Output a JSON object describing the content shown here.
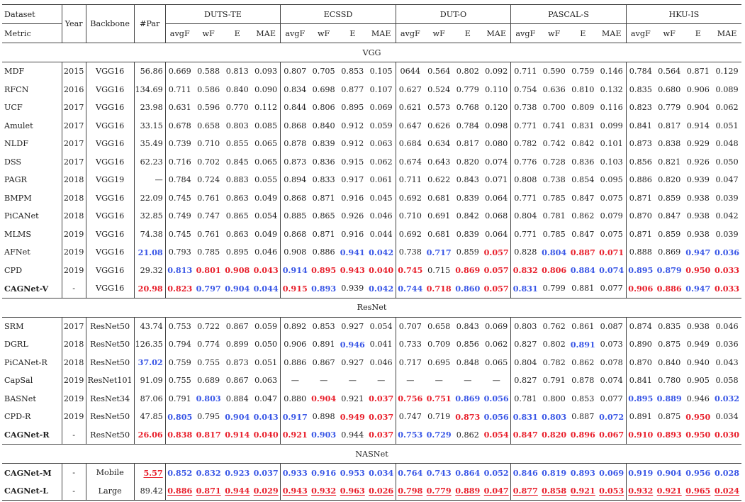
{
  "header": {
    "dataset_label": "Dataset",
    "metric_label": "Metric",
    "year_label": "Year",
    "backbone_label": "Backbone",
    "par_label": "#Par",
    "datasets": [
      "DUTS-TE",
      "ECSSD",
      "DUT-O",
      "PASCAL-S",
      "HKU-IS"
    ],
    "metrics": [
      "avgF",
      "wF",
      "E",
      "MAE"
    ]
  },
  "sections": [
    {
      "title": "VGG",
      "rows": [
        {
          "method": "MDF",
          "year": "2015",
          "backbone": "VGG16",
          "par": "56.86",
          "vals": [
            "0.669",
            "0.588",
            "0.813",
            "0.093",
            "0.807",
            "0.705",
            "0.853",
            "0.105",
            "0644",
            "0.564",
            "0.802",
            "0.092",
            "0.711",
            "0.590",
            "0.759",
            "0.146",
            "0.784",
            "0.564",
            "0.871",
            "0.129"
          ]
        },
        {
          "method": "RFCN",
          "year": "2016",
          "backbone": "VGG16",
          "par": "134.69",
          "vals": [
            "0.711",
            "0.586",
            "0.840",
            "0.090",
            "0.834",
            "0.698",
            "0.877",
            "0.107",
            "0.627",
            "0.524",
            "0.779",
            "0.110",
            "0.754",
            "0.636",
            "0.810",
            "0.132",
            "0.835",
            "0.680",
            "0.906",
            "0.089"
          ]
        },
        {
          "method": "UCF",
          "year": "2017",
          "backbone": "VGG16",
          "par": "23.98",
          "vals": [
            "0.631",
            "0.596",
            "0.770",
            "0.112",
            "0.844",
            "0.806",
            "0.895",
            "0.069",
            "0.621",
            "0.573",
            "0.768",
            "0.120",
            "0.738",
            "0.700",
            "0.809",
            "0.116",
            "0.823",
            "0.779",
            "0.904",
            "0.062"
          ]
        },
        {
          "method": "Amulet",
          "year": "2017",
          "backbone": "VGG16",
          "par": "33.15",
          "vals": [
            "0.678",
            "0.658",
            "0.803",
            "0.085",
            "0.868",
            "0.840",
            "0.912",
            "0.059",
            "0.647",
            "0.626",
            "0.784",
            "0.098",
            "0.771",
            "0.741",
            "0.831",
            "0.099",
            "0.841",
            "0.817",
            "0.914",
            "0.051"
          ]
        },
        {
          "method": "NLDF",
          "year": "2017",
          "backbone": "VGG16",
          "par": "35.49",
          "vals": [
            "0.739",
            "0.710",
            "0.855",
            "0.065",
            "0.878",
            "0.839",
            "0.912",
            "0.063",
            "0.684",
            "0.634",
            "0.817",
            "0.080",
            "0.782",
            "0.742",
            "0.842",
            "0.101",
            "0.873",
            "0.838",
            "0.929",
            "0.048"
          ]
        },
        {
          "method": "DSS",
          "year": "2017",
          "backbone": "VGG16",
          "par": "62.23",
          "vals": [
            "0.716",
            "0.702",
            "0.845",
            "0.065",
            "0.873",
            "0.836",
            "0.915",
            "0.062",
            "0.674",
            "0.643",
            "0.820",
            "0.074",
            "0.776",
            "0.728",
            "0.836",
            "0.103",
            "0.856",
            "0.821",
            "0.926",
            "0.050"
          ]
        },
        {
          "method": "PAGR",
          "year": "2018",
          "backbone": "VGG19",
          "par": "—",
          "vals": [
            "0.784",
            "0.724",
            "0.883",
            "0.055",
            "0.894",
            "0.833",
            "0.917",
            "0.061",
            "0.711",
            "0.622",
            "0.843",
            "0.071",
            "0.808",
            "0.738",
            "0.854",
            "0.095",
            "0.886",
            "0.820",
            "0.939",
            "0.047"
          ]
        },
        {
          "method": "BMPM",
          "year": "2018",
          "backbone": "VGG16",
          "par": "22.09",
          "vals": [
            "0.745",
            "0.761",
            "0.863",
            "0.049",
            "0.868",
            "0.871",
            "0.916",
            "0.045",
            "0.692",
            "0.681",
            "0.839",
            "0.064",
            "0.771",
            "0.785",
            "0.847",
            "0.075",
            "0.871",
            "0.859",
            "0.938",
            "0.039"
          ]
        },
        {
          "method": "PiCANet",
          "year": "2018",
          "backbone": "VGG16",
          "par": "32.85",
          "vals": [
            "0.749",
            "0.747",
            "0.865",
            "0.054",
            "0.885",
            "0.865",
            "0.926",
            "0.046",
            "0.710",
            "0.691",
            "0.842",
            "0.068",
            "0.804",
            "0.781",
            "0.862",
            "0.079",
            "0.870",
            "0.847",
            "0.938",
            "0.042"
          ]
        },
        {
          "method": "MLMS",
          "year": "2019",
          "backbone": "VGG16",
          "par": "74.38",
          "vals": [
            "0.745",
            "0.761",
            "0.863",
            "0.049",
            "0.868",
            "0.871",
            "0.916",
            "0.044",
            "0.692",
            "0.681",
            "0.839",
            "0.064",
            "0.771",
            "0.785",
            "0.847",
            "0.075",
            "0.871",
            "0.859",
            "0.938",
            "0.039"
          ]
        },
        {
          "method": "AFNet",
          "year": "2019",
          "backbone": "VGG16",
          "par": "21.08",
          "par_style": "blueb",
          "vals": [
            "0.793",
            "0.785",
            "0.895",
            "0.046",
            "0.908",
            "0.886",
            "0.941",
            "0.042",
            "0.738",
            "0.717",
            "0.859",
            "0.057",
            "0.828",
            "0.804",
            "0.887",
            "0.071",
            "0.888",
            "0.869",
            "0.947",
            "0.036"
          ],
          "styles": {
            "6": "blueb",
            "7": "blueb",
            "9": "blueb",
            "11": "red",
            "13": "blueb",
            "14": "red",
            "15": "red",
            "18": "blueb",
            "19": "blueb"
          }
        },
        {
          "method": "CPD",
          "year": "2019",
          "backbone": "VGG16",
          "par": "29.32",
          "vals": [
            "0.813",
            "0.801",
            "0.908",
            "0.043",
            "0.914",
            "0.895",
            "0.943",
            "0.040",
            "0.745",
            "0.715",
            "0.869",
            "0.057",
            "0.832",
            "0.806",
            "0.884",
            "0.074",
            "0.895",
            "0.879",
            "0.950",
            "0.033"
          ],
          "styles": {
            "0": "blueb",
            "1": "red",
            "2": "red",
            "3": "red",
            "4": "blueb",
            "5": "red",
            "6": "red",
            "7": "red",
            "8": "red",
            "10": "red",
            "11": "red",
            "12": "red",
            "13": "red",
            "14": "blueb",
            "15": "blueb",
            "16": "blueb",
            "17": "blueb",
            "18": "red",
            "19": "red"
          }
        },
        {
          "method": "CAGNet-V",
          "method_bold": true,
          "year": "-",
          "backbone": "VGG16",
          "par": "20.98",
          "par_style": "red",
          "vals": [
            "0.823",
            "0.797",
            "0.904",
            "0.044",
            "0.915",
            "0.893",
            "0.939",
            "0.042",
            "0.744",
            "0.718",
            "0.860",
            "0.057",
            "0.831",
            "0.799",
            "0.881",
            "0.077",
            "0.906",
            "0.886",
            "0.947",
            "0.033"
          ],
          "styles": {
            "0": "red",
            "1": "blueb",
            "2": "blueb",
            "3": "blueb",
            "4": "red",
            "5": "blueb",
            "7": "blueb",
            "8": "blueb",
            "9": "red",
            "10": "blueb",
            "11": "red",
            "12": "blueb",
            "16": "red",
            "17": "red",
            "18": "blueb",
            "19": "red"
          }
        }
      ]
    },
    {
      "title": "ResNet",
      "rows": [
        {
          "method": "SRM",
          "year": "2017",
          "backbone": "ResNet50",
          "par": "43.74",
          "vals": [
            "0.753",
            "0.722",
            "0.867",
            "0.059",
            "0.892",
            "0.853",
            "0.927",
            "0.054",
            "0.707",
            "0.658",
            "0.843",
            "0.069",
            "0.803",
            "0.762",
            "0.861",
            "0.087",
            "0.874",
            "0.835",
            "0.938",
            "0.046"
          ]
        },
        {
          "method": "DGRL",
          "year": "2018",
          "backbone": "ResNet50",
          "par": "126.35",
          "vals": [
            "0.794",
            "0.774",
            "0.899",
            "0.050",
            "0.906",
            "0.891",
            "0.946",
            "0.041",
            "0.733",
            "0.709",
            "0.856",
            "0.062",
            "0.827",
            "0.802",
            "0.891",
            "0.073",
            "0.890",
            "0.875",
            "0.949",
            "0.036"
          ],
          "styles": {
            "6": "blueb",
            "14": "blueb"
          }
        },
        {
          "method": "PiCANet-R",
          "year": "2018",
          "backbone": "ResNet50",
          "par": "37.02",
          "par_style": "blueb",
          "vals": [
            "0.759",
            "0.755",
            "0.873",
            "0.051",
            "0.886",
            "0.867",
            "0.927",
            "0.046",
            "0.717",
            "0.695",
            "0.848",
            "0.065",
            "0.804",
            "0.782",
            "0.862",
            "0.078",
            "0.870",
            "0.840",
            "0.940",
            "0.043"
          ]
        },
        {
          "method": "CapSal",
          "year": "2019",
          "backbone": "ResNet101",
          "par": "91.09",
          "vals": [
            "0.755",
            "0.689",
            "0.867",
            "0.063",
            "—",
            "—",
            "—",
            "—",
            "—",
            "—",
            "—",
            "—",
            "0.827",
            "0.791",
            "0.878",
            "0.074",
            "0.841",
            "0.780",
            "0.905",
            "0.058"
          ]
        },
        {
          "method": "BASNet",
          "year": "2019",
          "backbone": "ResNet34",
          "par": "87.06",
          "vals": [
            "0.791",
            "0.803",
            "0.884",
            "0.047",
            "0.880",
            "0.904",
            "0.921",
            "0.037",
            "0.756",
            "0.751",
            "0.869",
            "0.056",
            "0.781",
            "0.800",
            "0.853",
            "0.077",
            "0.895",
            "0.889",
            "0.946",
            "0.032"
          ],
          "styles": {
            "1": "blueb",
            "5": "red",
            "7": "red",
            "8": "red",
            "9": "red",
            "10": "blueb",
            "11": "blueb",
            "16": "blueb",
            "17": "blueb",
            "19": "blueb"
          }
        },
        {
          "method": "CPD-R",
          "year": "2019",
          "backbone": "ResNet50",
          "par": "47.85",
          "vals": [
            "0.805",
            "0.795",
            "0.904",
            "0.043",
            "0.917",
            "0.898",
            "0.949",
            "0.037",
            "0.747",
            "0.719",
            "0.873",
            "0.056",
            "0.831",
            "0.803",
            "0.887",
            "0.072",
            "0.891",
            "0.875",
            "0.950",
            "0.034"
          ],
          "styles": {
            "0": "blueb",
            "2": "blueb",
            "3": "blueb",
            "4": "blueb",
            "6": "red",
            "7": "red",
            "10": "red",
            "11": "blueb",
            "12": "blueb",
            "13": "blueb",
            "15": "blueb",
            "18": "red"
          }
        },
        {
          "method": "CAGNet-R",
          "method_bold": true,
          "year": "-",
          "backbone": "ResNet50",
          "par": "26.06",
          "par_style": "red",
          "vals": [
            "0.838",
            "0.817",
            "0.914",
            "0.040",
            "0.921",
            "0.903",
            "0.944",
            "0.037",
            "0.753",
            "0.729",
            "0.862",
            "0.054",
            "0.847",
            "0.820",
            "0.896",
            "0.067",
            "0.910",
            "0.893",
            "0.950",
            "0.030"
          ],
          "styles": {
            "0": "red",
            "1": "red",
            "2": "red",
            "3": "red",
            "4": "red",
            "5": "blueb",
            "7": "red",
            "8": "blueb",
            "9": "blueb",
            "11": "red",
            "12": "red",
            "13": "red",
            "14": "red",
            "15": "red",
            "16": "red",
            "17": "red",
            "18": "red",
            "19": "red"
          }
        }
      ]
    },
    {
      "title": "NASNet",
      "rows": [
        {
          "method": "CAGNet-M",
          "method_bold": true,
          "year": "-",
          "backbone": "Mobile",
          "par": "5.57",
          "par_style": "redul",
          "vals": [
            "0.852",
            "0.832",
            "0.923",
            "0.037",
            "0.933",
            "0.916",
            "0.953",
            "0.034",
            "0.764",
            "0.743",
            "0.864",
            "0.052",
            "0.846",
            "0.819",
            "0.893",
            "0.069",
            "0.919",
            "0.904",
            "0.956",
            "0.028"
          ],
          "all_style": "blueb"
        },
        {
          "method": "CAGNet-L",
          "method_bold": true,
          "year": "-",
          "backbone": "Large",
          "par": "89.42",
          "vals": [
            "0.886",
            "0.871",
            "0.944",
            "0.029",
            "0.943",
            "0.932",
            "0.963",
            "0.026",
            "0.798",
            "0.779",
            "0.889",
            "0.047",
            "0.877",
            "0.858",
            "0.921",
            "0.053",
            "0.932",
            "0.921",
            "0.965",
            "0.024"
          ],
          "all_style": "redul"
        }
      ]
    }
  ]
}
